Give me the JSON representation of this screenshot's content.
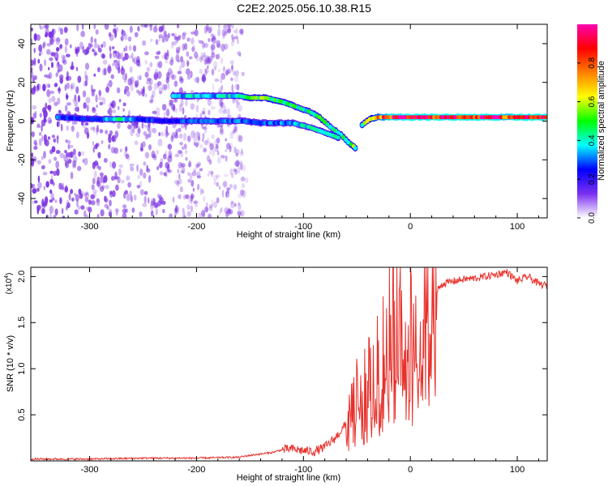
{
  "title": "C2E2.2025.056.10.38.R15",
  "colors": {
    "snr_line": "#e8312b",
    "frame": "#000000",
    "background": "#ffffff",
    "noise_cloud": "#7a2fe0"
  },
  "chart_data": [
    {
      "type": "heatmap",
      "name": "spectrogram",
      "xlabel": "Height of straight line (km)",
      "ylabel": "Frequency (Hz)",
      "xlim": [
        -355,
        128
      ],
      "ylim": [
        -50,
        50
      ],
      "xticks": [
        -300,
        -200,
        -100,
        0,
        100
      ],
      "xtick_labels": [
        "-300",
        "-200",
        "-100",
        "0",
        "100"
      ],
      "yticks": [
        -40,
        -20,
        0,
        20,
        40
      ],
      "ytick_labels": [
        "-40",
        "-20",
        "0",
        "20",
        "40"
      ],
      "grid": false,
      "colorbar": {
        "label": "Normalized spectral amplitude",
        "range": [
          0,
          1
        ],
        "ticks": [
          0.0,
          0.2,
          0.4,
          0.6,
          0.8
        ],
        "tick_labels": [
          "0.0",
          "0.2",
          "0.4",
          "0.6",
          "0.8"
        ],
        "colormap": [
          "#ffffff",
          "#7b2ff0",
          "#0000ff",
          "#00ffff",
          "#00ff00",
          "#ffff00",
          "#ff8000",
          "#ff0000",
          "#ff00b0"
        ]
      },
      "noise_region": {
        "x": [
          -355,
          -155
        ],
        "amplitude": 0.15
      },
      "tracks": [
        {
          "name": "upper-branch",
          "points": [
            [
              -222,
              13
            ],
            [
              -200,
              13
            ],
            [
              -180,
              13
            ],
            [
              -160,
              13
            ],
            [
              -150,
              12
            ],
            [
              -135,
              12
            ],
            [
              -120,
              10
            ],
            [
              -105,
              7
            ],
            [
              -95,
              5
            ],
            [
              -85,
              2
            ],
            [
              -75,
              -3
            ],
            [
              -65,
              -7
            ],
            [
              -58,
              -11
            ],
            [
              -53,
              -13
            ],
            [
              -50,
              -15
            ]
          ],
          "amplitude": [
            0.35,
            0.4,
            0.35,
            0.45,
            0.5,
            0.55,
            0.5,
            0.45,
            0.45,
            0.5,
            0.4,
            0.45,
            0.5,
            0.55,
            0.45
          ]
        },
        {
          "name": "lower-branch",
          "points": [
            [
              -330,
              2
            ],
            [
              -300,
              1
            ],
            [
              -270,
              1
            ],
            [
              -255,
              1
            ],
            [
              -230,
              0
            ],
            [
              -200,
              0
            ],
            [
              -175,
              0
            ],
            [
              -155,
              0
            ],
            [
              -140,
              -1
            ],
            [
              -125,
              -1
            ],
            [
              -110,
              -1
            ],
            [
              -95,
              -3
            ],
            [
              -85,
              -5
            ],
            [
              -75,
              -7
            ],
            [
              -65,
              -9
            ]
          ],
          "amplitude": [
            0.3,
            0.25,
            0.45,
            0.3,
            0.25,
            0.3,
            0.3,
            0.3,
            0.3,
            0.3,
            0.35,
            0.4,
            0.4,
            0.45,
            0.5
          ]
        },
        {
          "name": "carrier",
          "points": [
            [
              -45,
              -2
            ],
            [
              -38,
              1
            ],
            [
              -30,
              2
            ],
            [
              -20,
              2
            ],
            [
              0,
              2
            ],
            [
              20,
              2
            ],
            [
              40,
              2
            ],
            [
              60,
              2
            ],
            [
              80,
              2
            ],
            [
              90,
              2
            ],
            [
              100,
              2
            ],
            [
              120,
              2
            ],
            [
              128,
              2
            ]
          ],
          "amplitude": [
            0.5,
            0.6,
            0.75,
            0.9,
            0.95,
            0.95,
            0.95,
            0.95,
            0.95,
            0.85,
            0.95,
            0.95,
            0.95
          ]
        }
      ]
    },
    {
      "type": "line",
      "name": "snr",
      "xlabel": "Height of straight line (km)",
      "ylabel": "SNR (10 * v/v)",
      "multiplier": "(x10",
      "multiplier_exp": "4",
      "xlim": [
        -355,
        128
      ],
      "ylim": [
        0,
        2.1
      ],
      "xticks": [
        -300,
        -200,
        -100,
        0,
        100
      ],
      "xtick_labels": [
        "-300",
        "-200",
        "-100",
        "0",
        "100"
      ],
      "yticks": [
        0.5,
        1.0,
        1.5,
        2.0
      ],
      "ytick_labels": [
        "0.5",
        "1.0",
        "1.5",
        "2.0"
      ],
      "grid": false,
      "series": [
        {
          "color": "#e8312b",
          "x": [
            -355,
            -300,
            -250,
            -200,
            -160,
            -150,
            -130,
            -120,
            -110,
            -100,
            -90,
            -80,
            -70,
            -60,
            -55,
            -50,
            -45,
            -40,
            -35,
            -30,
            -25,
            -20,
            -15,
            -10,
            -5,
            0,
            5,
            10,
            15,
            20,
            25,
            30,
            40,
            50,
            60,
            70,
            80,
            90,
            100,
            110,
            120,
            128
          ],
          "y": [
            0.02,
            0.02,
            0.03,
            0.03,
            0.04,
            0.06,
            0.09,
            0.12,
            0.13,
            0.11,
            0.1,
            0.15,
            0.25,
            0.4,
            0.55,
            0.75,
            0.7,
            0.85,
            0.95,
            1.05,
            1.25,
            1.45,
            1.55,
            1.5,
            1.5,
            1.55,
            1.45,
            1.55,
            1.7,
            1.8,
            1.85,
            1.92,
            1.95,
            1.97,
            1.98,
            2.0,
            2.02,
            2.05,
            1.95,
            2.0,
            1.92,
            1.9
          ]
        }
      ]
    }
  ]
}
